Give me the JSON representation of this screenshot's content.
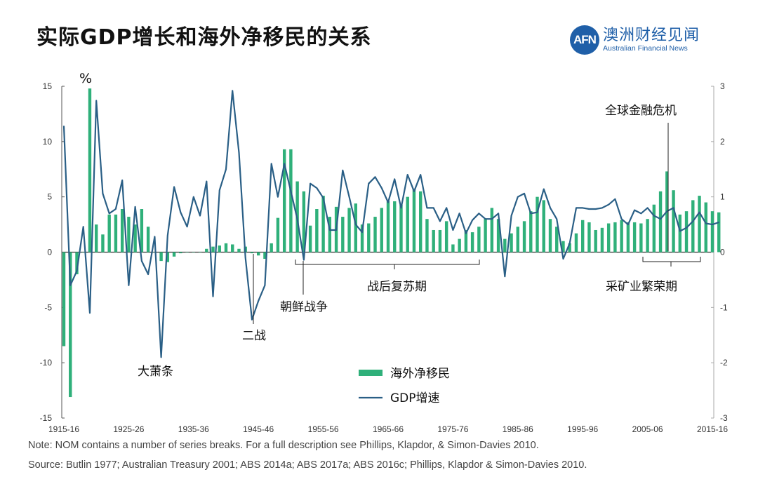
{
  "title": "实际GDP增长和海外净移民的关系",
  "logo": {
    "mark": "AFN",
    "cn": "澳洲财经见闻",
    "en": "Australian Financial News"
  },
  "colors": {
    "nom": "#2fb07a",
    "gdp": "#2a5f86",
    "axis": "#333333"
  },
  "chart_data": {
    "type": "bar+line",
    "ylabel_left": "%",
    "ylim_left": [
      -15,
      15
    ],
    "ylim_right": [
      -3,
      3
    ],
    "yticks_left": [
      "15",
      "10",
      "5",
      "0",
      "-5",
      "-10",
      "-15"
    ],
    "yticks_right": [
      "3",
      "2",
      "1",
      "0",
      "-1",
      "-2",
      "-3"
    ],
    "x_start_year": 1915,
    "xtick_labels": [
      "1915-16",
      "1925-26",
      "1935-36",
      "1945-46",
      "1955-56",
      "1965-66",
      "1975-76",
      "1985-86",
      "1995-96",
      "2005-06",
      "2015-16"
    ],
    "legend": {
      "position": "bottom-center",
      "nom": "海外净移民",
      "gdp": "GDP增速"
    },
    "series": [
      {
        "name": "GDP增速",
        "axis": "left",
        "type": "line",
        "values": [
          11.4,
          -3.0,
          -1.7,
          2.3,
          -5.5,
          13.7,
          5.3,
          3.5,
          3.9,
          6.5,
          -3.0,
          4.1,
          -0.8,
          -2.0,
          1.4,
          -9.5,
          1.5,
          5.9,
          3.6,
          2.3,
          5.0,
          3.3,
          6.4,
          -4.0,
          5.6,
          7.5,
          14.6,
          9.0,
          -0.5,
          -6.1,
          -4.4,
          -3.0,
          8.0,
          5.0,
          8.0,
          5.5,
          3.0,
          -0.7,
          6.2,
          5.8,
          4.9,
          2.0,
          2.0,
          7.4,
          5.0,
          2.5,
          1.8,
          6.2,
          6.8,
          5.8,
          4.5,
          6.6,
          4.0,
          7.0,
          5.5,
          7.0,
          4.0,
          4.0,
          2.8,
          4.0,
          2.0,
          3.5,
          1.7,
          2.9,
          3.5,
          3.0,
          3.0,
          3.5,
          -2.2,
          3.3,
          5.0,
          5.3,
          3.5,
          3.6,
          5.7,
          4.0,
          3.0,
          -0.6,
          0.8,
          4.0,
          4.0,
          3.9,
          3.9,
          4.0,
          4.3,
          4.8,
          3.0,
          2.5,
          3.8,
          3.5,
          4.0,
          3.3,
          3.0,
          3.7,
          4.0,
          1.9,
          2.2,
          2.8,
          3.6,
          2.6,
          2.5,
          2.7
        ]
      },
      {
        "name": "海外净移民",
        "axis": "right",
        "type": "bar",
        "values": [
          -1.7,
          -2.62,
          -0.4,
          0,
          2.96,
          0.5,
          0.32,
          0.68,
          0.68,
          0.78,
          0.64,
          0.5,
          0.78,
          0.46,
          0,
          -0.16,
          -0.18,
          -0.08,
          -0.02,
          0,
          0,
          0,
          0.06,
          0.1,
          0.12,
          0.16,
          0.14,
          0.06,
          0.1,
          -0.02,
          -0.06,
          -0.12,
          0.16,
          0.62,
          1.86,
          1.86,
          1.28,
          1.1,
          0.48,
          0.78,
          1.02,
          0.64,
          0.82,
          0.64,
          0.8,
          0.88,
          0.5,
          0.52,
          0.64,
          0.8,
          0.92,
          0.92,
          0.86,
          1.0,
          1.14,
          1.1,
          0.6,
          0.4,
          0.4,
          0.56,
          0.14,
          0.24,
          0.4,
          0.36,
          0.46,
          0.6,
          0.8,
          0.6,
          0.24,
          0.34,
          0.46,
          0.56,
          0.74,
          1.0,
          0.94,
          0.6,
          0.46,
          0.2,
          0.16,
          0.34,
          0.58,
          0.54,
          0.4,
          0.44,
          0.52,
          0.54,
          0.58,
          0.54,
          0.54,
          0.52,
          0.6,
          0.86,
          1.1,
          1.46,
          1.12,
          0.68,
          0.74,
          0.94,
          1.02,
          0.9,
          0.74,
          0.72
        ]
      }
    ],
    "annotations": {
      "depression": "大萧条",
      "ww2": "二战",
      "korea": "朝鲜战争",
      "postwar": "战后复苏期",
      "mining": "采矿业繁荣期",
      "gfc": "全球金融危机"
    }
  },
  "notes": {
    "note": "Note: NOM contains a number of series breaks. For a full description see Phillips, Klapdor, & Simon-Davies 2010.",
    "source": "Source: Butlin 1977; Australian Treasury 2001; ABS 2014a; ABS 2017a; ABS 2016c; Phillips, Klapdor & Simon-Davies 2010."
  }
}
